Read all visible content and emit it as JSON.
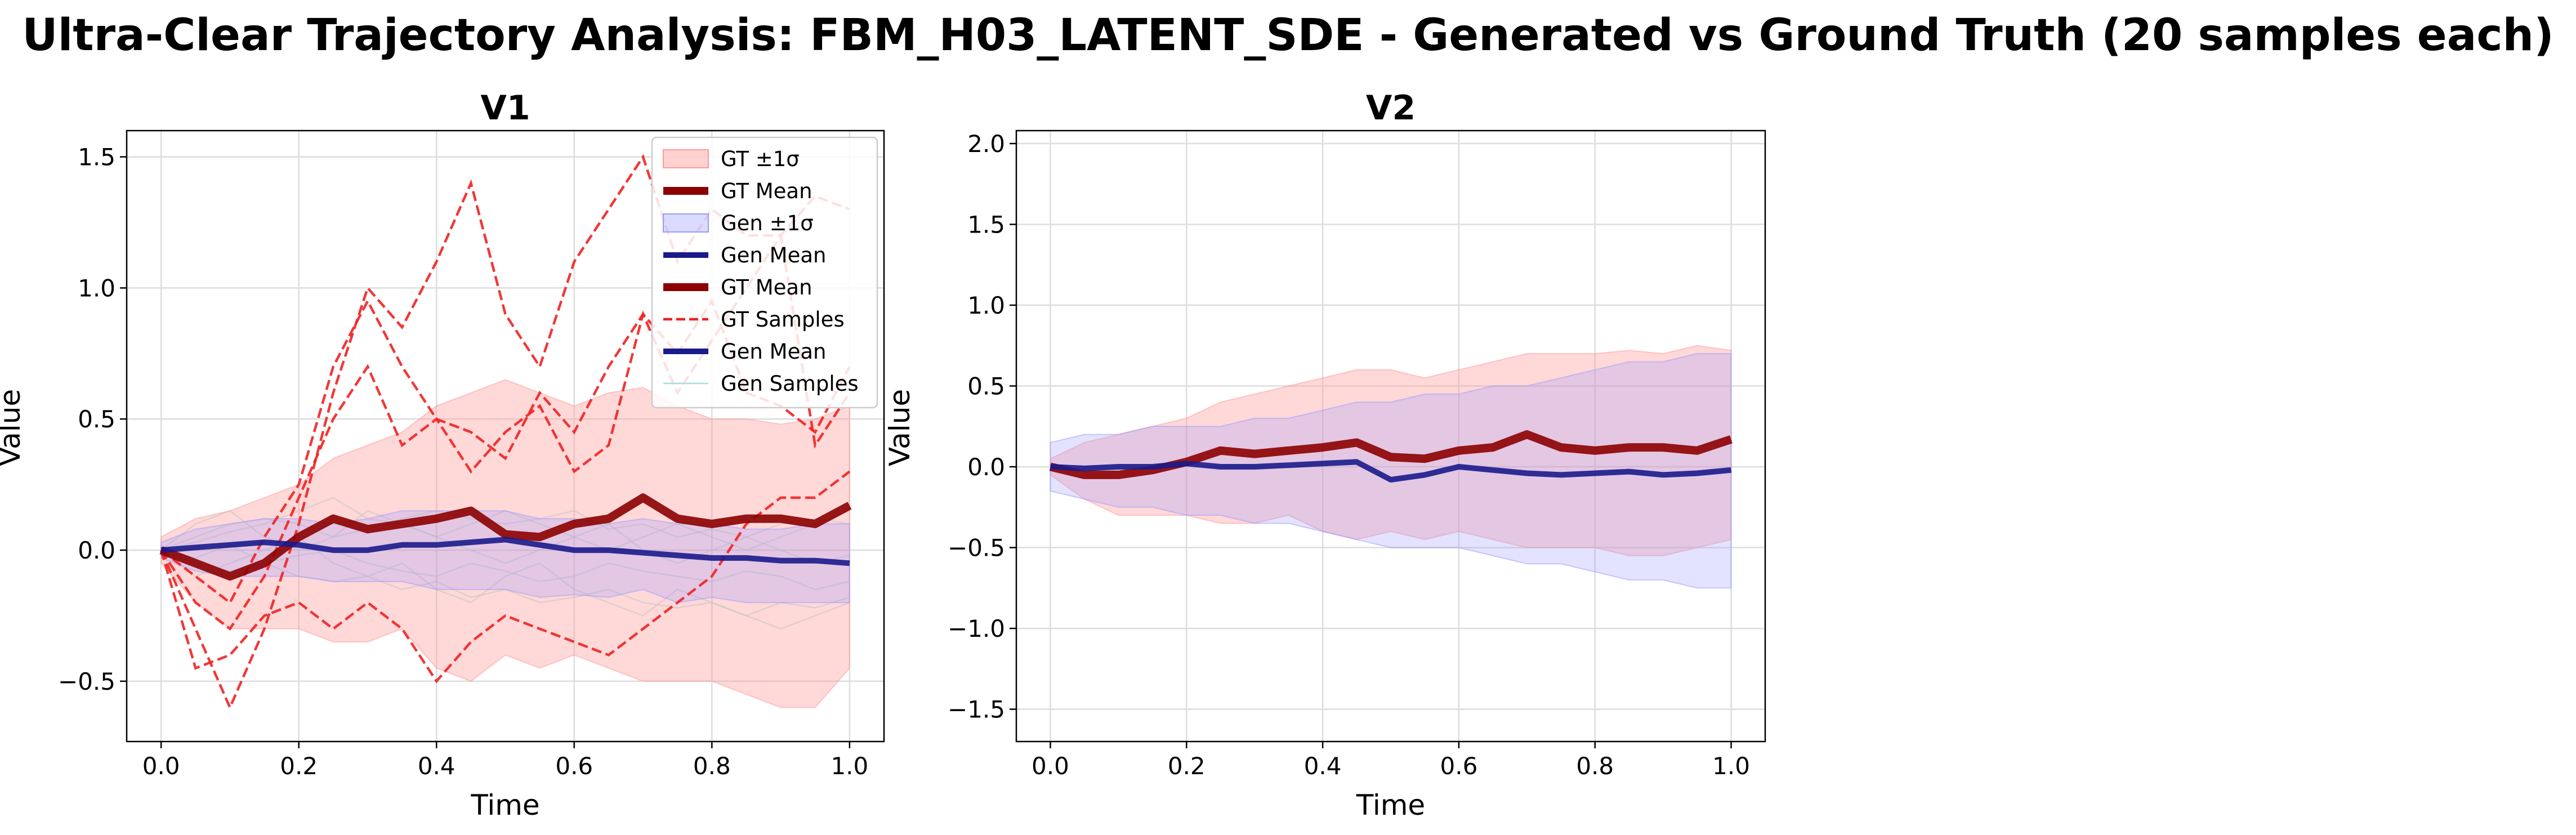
{
  "title": "Ultra-Clear Trajectory Analysis: FBM_H03_LATENT_SDE - Generated vs Ground Truth (20 samples each)",
  "colors": {
    "gt_band": "#ff9999",
    "gt_mean": "#8b0000",
    "gen_band": "#9999ff",
    "gen_mean": "#1a1a8c",
    "gt_samples": "#ee2222",
    "gen_samples": "#a8dede"
  },
  "chart_data": [
    {
      "type": "line",
      "title": "V1",
      "xlabel": "Time",
      "ylabel": "Value",
      "xlim": [
        -0.05,
        1.05
      ],
      "ylim": [
        -0.73,
        1.6
      ],
      "xticks": [
        0.0,
        0.2,
        0.4,
        0.6,
        0.8,
        1.0
      ],
      "xtick_labels": [
        "0.0",
        "0.2",
        "0.4",
        "0.6",
        "0.8",
        "1.0"
      ],
      "yticks": [
        -0.5,
        0.0,
        0.5,
        1.0,
        1.5
      ],
      "ytick_labels": [
        "−0.5",
        "0.0",
        "0.5",
        "1.0",
        "1.5"
      ],
      "grid": true,
      "legend_position": "top-right",
      "legend": [
        "GT ±1σ",
        "GT Mean",
        "Gen ±1σ",
        "Gen Mean",
        "GT Mean",
        "GT Samples",
        "Gen Mean",
        "Gen Samples"
      ],
      "x": [
        0.0,
        0.05,
        0.1,
        0.15,
        0.2,
        0.25,
        0.3,
        0.35,
        0.4,
        0.45,
        0.5,
        0.55,
        0.6,
        0.65,
        0.7,
        0.75,
        0.8,
        0.85,
        0.9,
        0.95,
        1.0
      ],
      "gt_band": {
        "upper": [
          0.05,
          0.12,
          0.15,
          0.2,
          0.25,
          0.35,
          0.4,
          0.45,
          0.55,
          0.6,
          0.65,
          0.6,
          0.55,
          0.6,
          0.62,
          0.55,
          0.5,
          0.5,
          0.48,
          0.5,
          0.55
        ],
        "lower": [
          -0.05,
          -0.2,
          -0.3,
          -0.3,
          -0.3,
          -0.35,
          -0.35,
          -0.3,
          -0.45,
          -0.5,
          -0.4,
          -0.45,
          -0.4,
          -0.45,
          -0.5,
          -0.5,
          -0.5,
          -0.55,
          -0.6,
          -0.6,
          -0.45
        ]
      },
      "gen_band": {
        "upper": [
          0.03,
          0.08,
          0.1,
          0.12,
          0.12,
          0.1,
          0.12,
          0.15,
          0.15,
          0.15,
          0.15,
          0.12,
          0.12,
          0.1,
          0.12,
          0.1,
          0.1,
          0.08,
          0.08,
          0.1,
          0.1
        ],
        "lower": [
          -0.03,
          -0.08,
          -0.1,
          -0.1,
          -0.1,
          -0.12,
          -0.12,
          -0.12,
          -0.15,
          -0.15,
          -0.15,
          -0.18,
          -0.17,
          -0.18,
          -0.15,
          -0.2,
          -0.18,
          -0.2,
          -0.2,
          -0.2,
          -0.2
        ]
      },
      "gt_mean": [
        0.0,
        -0.05,
        -0.1,
        -0.05,
        0.05,
        0.12,
        0.08,
        0.1,
        0.12,
        0.15,
        0.06,
        0.05,
        0.1,
        0.12,
        0.2,
        0.12,
        0.1,
        0.12,
        0.12,
        0.1,
        0.17
      ],
      "gen_mean": [
        0.0,
        0.01,
        0.02,
        0.03,
        0.02,
        0.0,
        0.0,
        0.02,
        0.02,
        0.03,
        0.04,
        0.02,
        0.0,
        0.0,
        -0.01,
        -0.02,
        -0.03,
        -0.03,
        -0.04,
        -0.04,
        -0.05
      ],
      "gt_samples": [
        [
          0.0,
          -0.3,
          -0.6,
          -0.3,
          0.1,
          0.6,
          1.0,
          0.85,
          1.1,
          1.4,
          0.9,
          0.7,
          1.1,
          1.3,
          1.5,
          1.1,
          1.3,
          1.2,
          1.2,
          1.35,
          1.3
        ],
        [
          0.0,
          -0.2,
          -0.3,
          -0.1,
          0.2,
          0.5,
          0.7,
          0.4,
          0.5,
          0.3,
          0.45,
          0.55,
          0.3,
          0.4,
          0.9,
          0.6,
          0.8,
          1.0,
          1.2,
          0.4,
          0.6
        ],
        [
          0.0,
          -0.45,
          -0.4,
          -0.25,
          -0.2,
          -0.3,
          -0.2,
          -0.3,
          -0.5,
          -0.35,
          -0.25,
          -0.3,
          -0.35,
          -0.4,
          -0.3,
          -0.2,
          -0.1,
          0.1,
          0.2,
          0.2,
          0.3
        ],
        [
          0.0,
          -0.1,
          -0.2,
          0.05,
          0.25,
          0.7,
          0.95,
          0.7,
          0.5,
          0.45,
          0.35,
          0.6,
          0.45,
          0.7,
          0.9,
          0.75,
          0.95,
          0.6,
          0.55,
          0.45,
          0.7
        ]
      ],
      "gen_samples": [
        [
          0.0,
          0.05,
          0.1,
          0.12,
          0.1,
          0.05,
          0.08,
          0.12,
          0.15,
          0.12,
          0.1,
          0.12,
          0.15,
          0.08,
          0.1,
          0.05,
          0.08,
          0.05,
          0.1,
          0.12,
          0.1
        ],
        [
          0.0,
          -0.05,
          -0.08,
          -0.05,
          -0.1,
          -0.12,
          -0.1,
          -0.15,
          -0.12,
          -0.18,
          -0.15,
          -0.2,
          -0.18,
          -0.15,
          -0.2,
          -0.22,
          -0.2,
          -0.25,
          -0.2,
          -0.22,
          -0.18
        ],
        [
          0.0,
          0.1,
          0.15,
          0.05,
          0.0,
          0.05,
          0.15,
          0.1,
          0.05,
          0.0,
          -0.05,
          0.0,
          0.05,
          0.1,
          0.0,
          -0.05,
          0.0,
          0.05,
          0.0,
          -0.05,
          -0.02
        ],
        [
          0.0,
          -0.1,
          -0.05,
          0.0,
          0.05,
          -0.05,
          -0.1,
          -0.05,
          -0.15,
          -0.2,
          -0.1,
          -0.05,
          -0.15,
          -0.2,
          -0.25,
          -0.15,
          -0.2,
          -0.25,
          -0.3,
          -0.25,
          -0.2
        ],
        [
          0.0,
          0.03,
          0.07,
          0.1,
          0.15,
          0.2,
          0.12,
          0.1,
          0.05,
          0.1,
          0.15,
          0.1,
          0.05,
          0.0,
          0.05,
          0.1,
          0.05,
          0.0,
          0.05,
          0.1,
          0.15
        ],
        [
          0.0,
          -0.03,
          0.02,
          -0.05,
          -0.02,
          0.0,
          -0.05,
          -0.08,
          -0.1,
          -0.05,
          -0.08,
          -0.12,
          -0.1,
          -0.05,
          -0.08,
          -0.1,
          -0.12,
          -0.08,
          -0.1,
          -0.15,
          -0.12
        ]
      ]
    },
    {
      "type": "line",
      "title": "V2",
      "xlabel": "Time",
      "ylabel": "Value",
      "xlim": [
        -0.05,
        1.05
      ],
      "ylim": [
        -1.7,
        2.08
      ],
      "xticks": [
        0.0,
        0.2,
        0.4,
        0.6,
        0.8,
        1.0
      ],
      "xtick_labels": [
        "0.0",
        "0.2",
        "0.4",
        "0.6",
        "0.8",
        "1.0"
      ],
      "yticks": [
        -1.5,
        -1.0,
        -0.5,
        0.0,
        0.5,
        1.0,
        1.5,
        2.0
      ],
      "ytick_labels": [
        "−1.5",
        "−1.0",
        "−0.5",
        "0.0",
        "0.5",
        "1.0",
        "1.5",
        "2.0"
      ],
      "grid": true,
      "x": [
        0.0,
        0.05,
        0.1,
        0.15,
        0.2,
        0.25,
        0.3,
        0.35,
        0.4,
        0.45,
        0.5,
        0.55,
        0.6,
        0.65,
        0.7,
        0.75,
        0.8,
        0.85,
        0.9,
        0.95,
        1.0
      ],
      "gt_band": {
        "upper": [
          0.05,
          0.15,
          0.2,
          0.25,
          0.3,
          0.4,
          0.45,
          0.5,
          0.55,
          0.6,
          0.6,
          0.55,
          0.6,
          0.65,
          0.7,
          0.7,
          0.7,
          0.72,
          0.7,
          0.75,
          0.72
        ],
        "lower": [
          -0.05,
          -0.2,
          -0.3,
          -0.3,
          -0.3,
          -0.35,
          -0.35,
          -0.3,
          -0.4,
          -0.45,
          -0.4,
          -0.45,
          -0.4,
          -0.45,
          -0.5,
          -0.5,
          -0.5,
          -0.55,
          -0.55,
          -0.5,
          -0.45
        ]
      },
      "gen_band": {
        "upper": [
          0.15,
          0.2,
          0.2,
          0.25,
          0.25,
          0.25,
          0.3,
          0.3,
          0.35,
          0.4,
          0.4,
          0.45,
          0.45,
          0.5,
          0.5,
          0.55,
          0.6,
          0.65,
          0.65,
          0.7,
          0.7
        ],
        "lower": [
          -0.15,
          -0.2,
          -0.25,
          -0.25,
          -0.3,
          -0.3,
          -0.35,
          -0.35,
          -0.4,
          -0.45,
          -0.5,
          -0.5,
          -0.5,
          -0.55,
          -0.6,
          -0.6,
          -0.65,
          -0.7,
          -0.7,
          -0.75,
          -0.75
        ]
      },
      "gt_mean": [
        0.0,
        -0.05,
        -0.05,
        -0.02,
        0.03,
        0.1,
        0.08,
        0.1,
        0.12,
        0.15,
        0.06,
        0.05,
        0.1,
        0.12,
        0.2,
        0.12,
        0.1,
        0.12,
        0.12,
        0.1,
        0.17
      ],
      "gen_mean": [
        0.0,
        -0.01,
        0.0,
        0.0,
        0.02,
        0.0,
        0.0,
        0.01,
        0.02,
        0.03,
        -0.08,
        -0.05,
        0.0,
        -0.02,
        -0.04,
        -0.05,
        -0.04,
        -0.03,
        -0.05,
        -0.04,
        -0.02
      ]
    }
  ]
}
